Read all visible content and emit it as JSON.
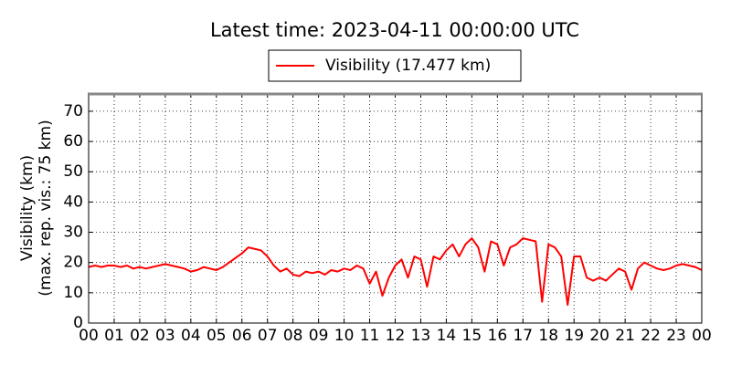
{
  "chart_data": {
    "type": "line",
    "title": "Latest time: 2023-04-11 00:00:00 UTC",
    "ylabel": [
      "Visibility (km)",
      "(max. rep. vis.: 75 km)"
    ],
    "x": [
      0,
      0.25,
      0.5,
      0.75,
      1,
      1.25,
      1.5,
      1.75,
      2,
      2.25,
      2.5,
      2.75,
      3,
      3.25,
      3.5,
      3.75,
      4,
      4.25,
      4.5,
      4.75,
      5,
      5.25,
      5.5,
      5.75,
      6,
      6.25,
      6.5,
      6.75,
      7,
      7.25,
      7.5,
      7.75,
      8,
      8.25,
      8.5,
      8.75,
      9,
      9.25,
      9.5,
      9.75,
      10,
      10.25,
      10.5,
      10.75,
      11,
      11.25,
      11.5,
      11.75,
      12,
      12.25,
      12.5,
      12.75,
      13,
      13.25,
      13.5,
      13.75,
      14,
      14.25,
      14.5,
      14.75,
      15,
      15.25,
      15.5,
      15.75,
      16,
      16.25,
      16.5,
      16.75,
      17,
      17.25,
      17.5,
      17.75,
      18,
      18.25,
      18.5,
      18.75,
      19,
      19.25,
      19.5,
      19.75,
      20,
      20.25,
      20.5,
      20.75,
      21,
      21.25,
      21.5,
      21.75,
      22,
      22.25,
      22.5,
      22.75,
      23,
      23.25,
      23.5,
      23.75,
      24
    ],
    "series": [
      {
        "name": "Visibility (17.477 km)",
        "color": "#ff0000",
        "values": [
          18.5,
          19,
          18.5,
          19,
          19,
          18.5,
          19,
          18,
          18.5,
          18,
          18.5,
          19,
          19.5,
          19,
          18.5,
          18,
          17,
          17.5,
          18.5,
          18,
          17.5,
          18.5,
          20,
          21.5,
          23,
          25,
          24.5,
          24,
          22,
          19,
          17,
          18,
          16,
          15.5,
          17,
          16.5,
          17,
          16,
          17.5,
          17,
          18,
          17.5,
          19,
          18,
          13,
          17,
          9,
          15,
          19,
          21,
          15,
          22,
          21,
          12,
          22,
          21,
          24,
          26,
          22,
          26,
          28,
          25,
          17,
          27,
          26,
          19,
          25,
          26,
          28,
          27.5,
          27,
          7,
          26,
          25,
          22,
          6,
          22,
          22,
          15,
          14,
          15,
          14,
          16,
          18,
          17,
          11,
          18,
          20,
          19,
          18,
          17.5,
          18,
          19,
          19.5,
          19,
          18.5,
          17.5
        ]
      }
    ],
    "xlim": [
      0,
      24
    ],
    "xticks": [
      {
        "value": 0,
        "label": "00"
      },
      {
        "value": 1,
        "label": "01"
      },
      {
        "value": 2,
        "label": "02"
      },
      {
        "value": 3,
        "label": "03"
      },
      {
        "value": 4,
        "label": "04"
      },
      {
        "value": 5,
        "label": "05"
      },
      {
        "value": 6,
        "label": "06"
      },
      {
        "value": 7,
        "label": "07"
      },
      {
        "value": 8,
        "label": "08"
      },
      {
        "value": 9,
        "label": "09"
      },
      {
        "value": 10,
        "label": "10"
      },
      {
        "value": 11,
        "label": "11"
      },
      {
        "value": 12,
        "label": "12"
      },
      {
        "value": 13,
        "label": "13"
      },
      {
        "value": 14,
        "label": "14"
      },
      {
        "value": 15,
        "label": "15"
      },
      {
        "value": 16,
        "label": "16"
      },
      {
        "value": 17,
        "label": "17"
      },
      {
        "value": 18,
        "label": "18"
      },
      {
        "value": 19,
        "label": "19"
      },
      {
        "value": 20,
        "label": "20"
      },
      {
        "value": 21,
        "label": "21"
      },
      {
        "value": 22,
        "label": "22"
      },
      {
        "value": 23,
        "label": "23"
      },
      {
        "value": 24,
        "label": "00"
      }
    ],
    "ylim": [
      0,
      76
    ],
    "yticks": [
      0,
      10,
      20,
      30,
      40,
      50,
      60,
      70
    ],
    "grid": true
  }
}
